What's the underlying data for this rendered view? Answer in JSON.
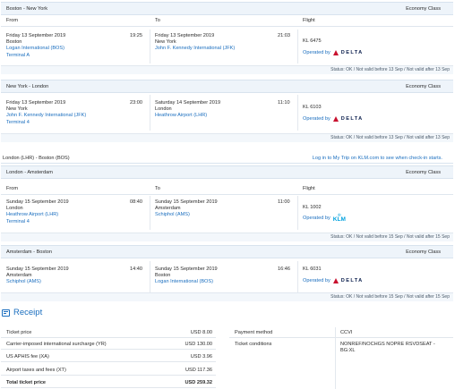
{
  "trips": [
    {
      "title": "",
      "segments": [
        {
          "route": "Boston - New York",
          "cabin": "Economy Class",
          "headers": {
            "from": "From",
            "to": "To",
            "flight": "Flight"
          },
          "from": {
            "date": "Friday 13 September 2019",
            "time": "19:25",
            "city": "Boston",
            "airport": "Logan International (BOS)",
            "terminal": "Terminal A"
          },
          "to": {
            "date": "Friday 13 September 2019",
            "time": "21:03",
            "city": "New York",
            "airport": "John F. Kennedy International (JFK)",
            "terminal": ""
          },
          "flight_no": "KL 6475",
          "operated_label": "Operated by",
          "airline": "DELTA",
          "status": "Status: OK / Not valid before 13 Sep / Not valid after 13 Sep"
        },
        {
          "route": "New York - London",
          "cabin": "Economy Class",
          "from": {
            "date": "Friday 13 September 2019",
            "time": "23:00",
            "city": "New York",
            "airport": "John F. Kennedy International (JFK)",
            "terminal": "Terminal 4"
          },
          "to": {
            "date": "Saturday 14 September 2019",
            "time": "11:10",
            "city": "London",
            "airport": "Heathrow Airport (LHR)",
            "terminal": ""
          },
          "flight_no": "KL 6103",
          "operated_label": "Operated by",
          "airline": "DELTA",
          "status": "Status: OK / Not valid before 13 Sep / Not valid after 13 Sep"
        }
      ]
    },
    {
      "title": "London (LHR) - Boston (BOS)",
      "checkin_link": "Log in to My Trip on KLM.com to see when check-in starts.",
      "segments": [
        {
          "route": "London - Amsterdam",
          "cabin": "Economy Class",
          "headers": {
            "from": "From",
            "to": "To",
            "flight": "Flight"
          },
          "from": {
            "date": "Sunday 15 September 2019",
            "time": "08:40",
            "city": "London",
            "airport": "Heathrow Airport (LHR)",
            "terminal": "Terminal 4"
          },
          "to": {
            "date": "Sunday 15 September 2019",
            "time": "11:00",
            "city": "Amsterdam",
            "airport": "Schiphol (AMS)",
            "terminal": ""
          },
          "flight_no": "KL 1002",
          "operated_label": "Operated by",
          "airline": "KLM",
          "status": "Status: OK / Not valid before 15 Sep / Not valid after 15 Sep"
        },
        {
          "route": "Amsterdam - Boston",
          "cabin": "Economy Class",
          "from": {
            "date": "Sunday 15 September 2019",
            "time": "14:40",
            "city": "Amsterdam",
            "airport": "Schiphol (AMS)",
            "terminal": ""
          },
          "to": {
            "date": "Sunday 15 September 2019",
            "time": "16:46",
            "city": "Boston",
            "airport": "Logan International (BOS)",
            "terminal": ""
          },
          "flight_no": "KL 6031",
          "operated_label": "Operated by",
          "airline": "DELTA",
          "status": "Status: OK / Not valid before 15 Sep / Not valid after 15 Sep"
        }
      ]
    }
  ],
  "receipt": {
    "title": "Receipt",
    "lines": [
      {
        "label": "Ticket price",
        "value": "USD 8.00"
      },
      {
        "label": "Carrier-imposed international surcharge (YR)",
        "value": "USD 130.00"
      },
      {
        "label": "US APHIS fee (XA)",
        "value": "USD 3.96"
      },
      {
        "label": "Airport taxes and fees (XT)",
        "value": "USD 117.36"
      },
      {
        "label": "Total ticket price",
        "value": "USD 259.32"
      }
    ],
    "payment_method_label": "Payment method",
    "payment_method_value": "CCVI",
    "ticket_conditions_label": "Ticket conditions",
    "ticket_conditions_value": "NONREF/NOCHGS NOPRE RSVDSEAT - BG:XL"
  },
  "colors": {
    "link": "#1a6ebf",
    "delta_red": "#c8102e",
    "klm_blue": "#00a1de",
    "bar_bg": "#eef4fa"
  }
}
